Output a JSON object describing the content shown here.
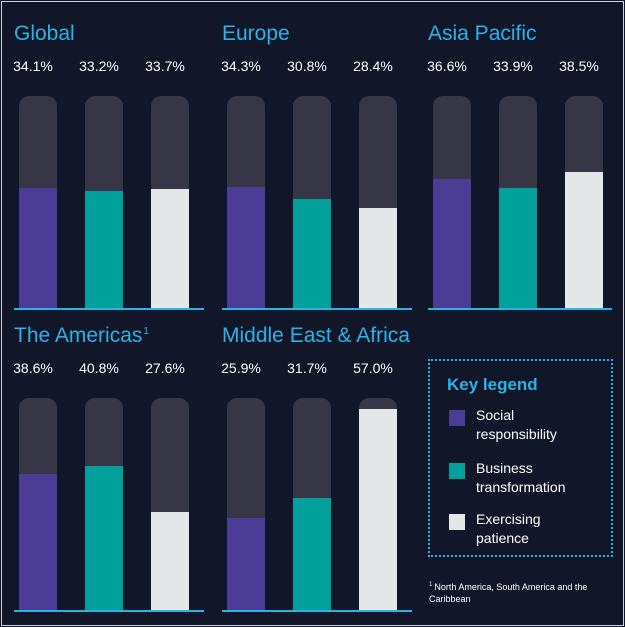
{
  "colors": {
    "background": "#111629",
    "accent": "#2ab3e6",
    "track": "#363646",
    "social_responsibility": "#4b3d96",
    "business_transformation": "#00a19b",
    "exercising_patience": "#e4e7e8"
  },
  "chart_data": [
    {
      "type": "bar",
      "title": "Global",
      "categories": [
        "Social responsibility",
        "Business transformation",
        "Exercising patience"
      ],
      "values": [
        34.1,
        33.2,
        33.7
      ],
      "labels": [
        "34.1%",
        "33.2%",
        "33.7%"
      ],
      "ylim": [
        0,
        60
      ]
    },
    {
      "type": "bar",
      "title": "Europe",
      "categories": [
        "Social responsibility",
        "Business transformation",
        "Exercising patience"
      ],
      "values": [
        34.3,
        30.8,
        28.4
      ],
      "labels": [
        "34.3%",
        "30.8%",
        "28.4%"
      ],
      "ylim": [
        0,
        60
      ]
    },
    {
      "type": "bar",
      "title": "Asia Pacific",
      "categories": [
        "Social responsibility",
        "Business transformation",
        "Exercising patience"
      ],
      "values": [
        36.6,
        33.9,
        38.5
      ],
      "labels": [
        "36.6%",
        "33.9%",
        "38.5%"
      ],
      "ylim": [
        0,
        60
      ]
    },
    {
      "type": "bar",
      "title": "The Americas",
      "title_note": "1",
      "categories": [
        "Social responsibility",
        "Business transformation",
        "Exercising patience"
      ],
      "values": [
        38.6,
        40.8,
        27.6
      ],
      "labels": [
        "38.6%",
        "40.8%",
        "27.6%"
      ],
      "ylim": [
        0,
        60
      ]
    },
    {
      "type": "bar",
      "title": "Middle East & Africa",
      "categories": [
        "Social responsibility",
        "Business transformation",
        "Exercising patience"
      ],
      "values": [
        25.9,
        31.7,
        57.0
      ],
      "labels": [
        "25.9%",
        "31.7%",
        "57.0%"
      ],
      "ylim": [
        0,
        60
      ]
    }
  ],
  "legend": {
    "title": "Key legend",
    "items": [
      {
        "label": "Social responsibility",
        "color_key": "social_responsibility"
      },
      {
        "label": "Business transformation",
        "color_key": "business_transformation"
      },
      {
        "label": "Exercising patience",
        "color_key": "exercising_patience"
      }
    ]
  },
  "footnote": {
    "mark": "1",
    "text": "North America, South America and the Caribbean"
  }
}
